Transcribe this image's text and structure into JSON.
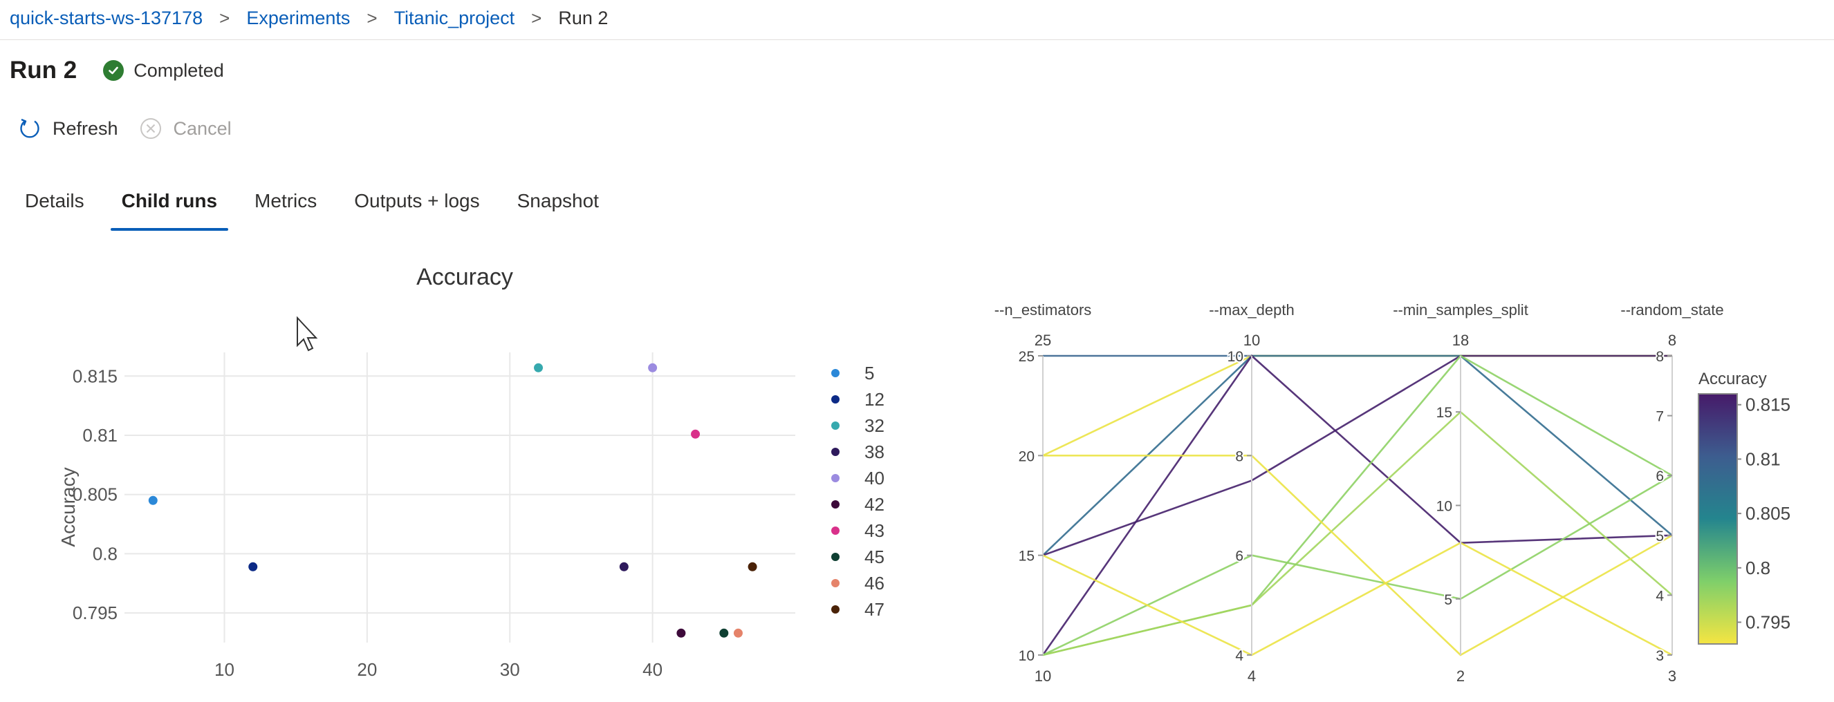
{
  "breadcrumb": {
    "items": [
      "quick-starts-ws-137178",
      "Experiments",
      "Titanic_project"
    ],
    "current": "Run 2",
    "separator": ">"
  },
  "header": {
    "title": "Run 2",
    "status": "Completed",
    "status_color": "#2e7d32"
  },
  "toolbar": {
    "refresh_label": "Refresh",
    "cancel_label": "Cancel"
  },
  "tabs": [
    {
      "label": "Details",
      "active": false
    },
    {
      "label": "Child runs",
      "active": true
    },
    {
      "label": "Metrics",
      "active": false
    },
    {
      "label": "Outputs + logs",
      "active": false
    },
    {
      "label": "Snapshot",
      "active": false
    }
  ],
  "colors": {
    "accent": "#0a5eb8"
  },
  "chart_data": [
    {
      "type": "scatter",
      "title": "Accuracy",
      "xlabel": "",
      "ylabel": "Accuracy",
      "xlim": [
        3,
        50
      ],
      "ylim": [
        0.7925,
        0.817
      ],
      "xticks": [
        10,
        20,
        30,
        40
      ],
      "yticks": [
        0.795,
        0.8,
        0.805,
        0.81,
        0.815
      ],
      "ytick_labels": [
        "0.795",
        "0.8",
        "0.805",
        "0.81",
        "0.815"
      ],
      "grid": true,
      "legend_position": "right",
      "series": [
        {
          "name": "5",
          "color": "#2b88d8",
          "x": 5,
          "y": 0.8045
        },
        {
          "name": "12",
          "color": "#0c2a86",
          "x": 12,
          "y": 0.7989
        },
        {
          "name": "32",
          "color": "#36a9ae",
          "x": 32,
          "y": 0.8157
        },
        {
          "name": "38",
          "color": "#2e1a5c",
          "x": 38,
          "y": 0.7989
        },
        {
          "name": "40",
          "color": "#9b8be0",
          "x": 40,
          "y": 0.8157
        },
        {
          "name": "42",
          "color": "#3d0a3a",
          "x": 42,
          "y": 0.7933
        },
        {
          "name": "43",
          "color": "#d9308a",
          "x": 43,
          "y": 0.8101
        },
        {
          "name": "45",
          "color": "#0f3f32",
          "x": 45,
          "y": 0.7933
        },
        {
          "name": "46",
          "color": "#e5836a",
          "x": 46,
          "y": 0.7933
        },
        {
          "name": "47",
          "color": "#4a2208",
          "x": 47,
          "y": 0.7989
        }
      ]
    },
    {
      "type": "parallel_coordinates",
      "axes": [
        {
          "name": "--n_estimators",
          "range": [
            10,
            25
          ],
          "ticks": [
            10,
            15,
            20,
            25
          ],
          "min_label": "10",
          "max_label": "25"
        },
        {
          "name": "--max_depth",
          "range": [
            4,
            10
          ],
          "ticks": [
            4,
            6,
            8,
            10
          ],
          "min_label": "4",
          "max_label": "10"
        },
        {
          "name": "--min_samples_split",
          "range": [
            2,
            18
          ],
          "ticks": [
            5,
            10,
            15
          ],
          "min_label": "2",
          "max_label": "18"
        },
        {
          "name": "--random_state",
          "range": [
            3,
            8
          ],
          "ticks": [
            3,
            4,
            5,
            6,
            7,
            8
          ],
          "min_label": "3",
          "max_label": "8"
        }
      ],
      "colorbar": {
        "title": "Accuracy",
        "range": [
          0.793,
          0.816
        ],
        "ticks": [
          0.795,
          0.8,
          0.805,
          0.81,
          0.815
        ],
        "tick_labels": [
          "0.795",
          "0.8",
          "0.805",
          "0.81",
          "0.815"
        ],
        "colors": [
          "#f5e542",
          "#7fcf6a",
          "#24858e",
          "#3d5d8f",
          "#461a69"
        ]
      },
      "lines": [
        {
          "values": [
            25,
            10,
            18,
            8
          ],
          "accuracy": 0.809
        },
        {
          "values": [
            20,
            10,
            18,
            8
          ],
          "accuracy": 0.7935
        },
        {
          "values": [
            15,
            10,
            18,
            5
          ],
          "accuracy": 0.808
        },
        {
          "values": [
            15,
            7.5,
            18,
            8
          ],
          "accuracy": 0.8155
        },
        {
          "values": [
            10,
            10,
            8,
            5
          ],
          "accuracy": 0.8155
        },
        {
          "values": [
            10,
            5,
            18,
            6
          ],
          "accuracy": 0.798
        },
        {
          "values": [
            10,
            5,
            15,
            4
          ],
          "accuracy": 0.797
        },
        {
          "values": [
            10,
            6,
            5,
            6
          ],
          "accuracy": 0.798
        },
        {
          "values": [
            20,
            8,
            2,
            5
          ],
          "accuracy": 0.7935
        },
        {
          "values": [
            15,
            4,
            8,
            3
          ],
          "accuracy": 0.7935
        }
      ]
    }
  ]
}
